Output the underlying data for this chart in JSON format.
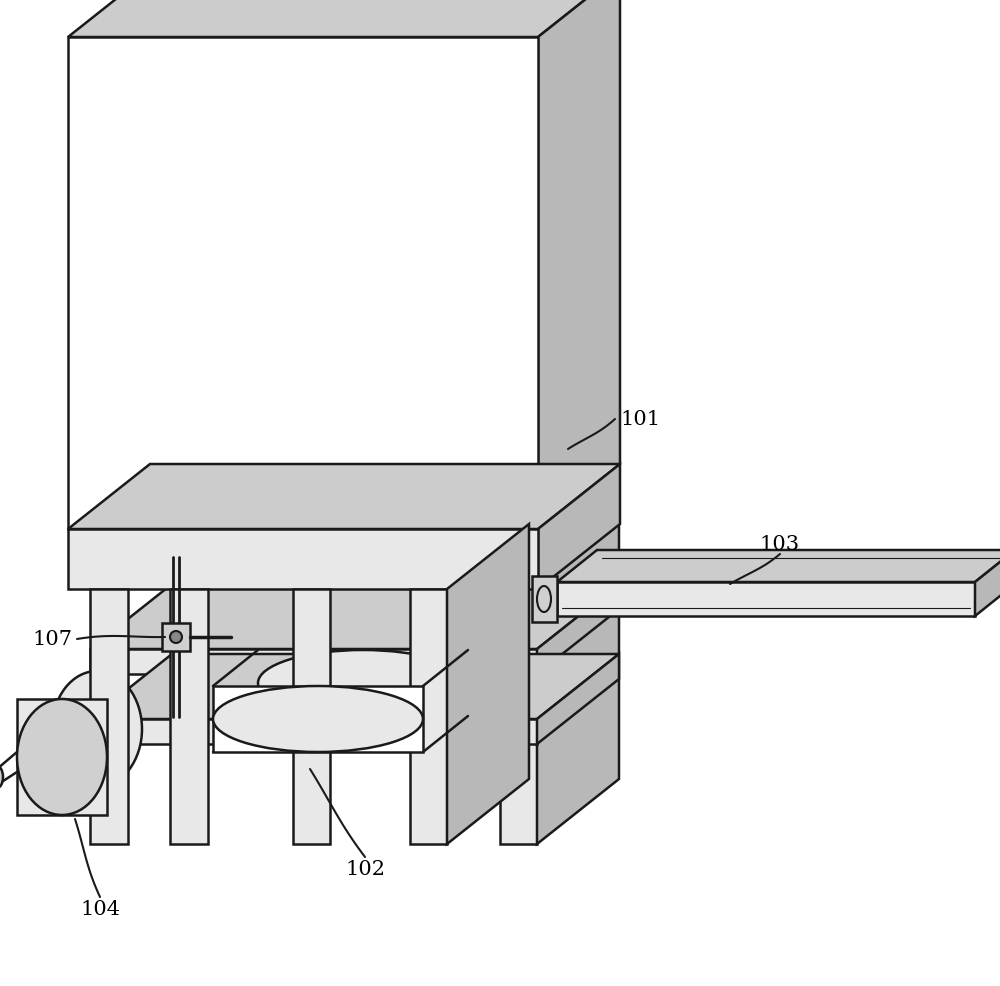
{
  "bg_color": "#ffffff",
  "line_color": "#1a1a1a",
  "line_width": 1.8,
  "label_fontsize": 15,
  "gray_top": "#cccccc",
  "gray_right": "#b8b8b8",
  "gray_front": "#e8e8e8",
  "white_front": "#ffffff",
  "gray_medium": "#d0d0d0"
}
